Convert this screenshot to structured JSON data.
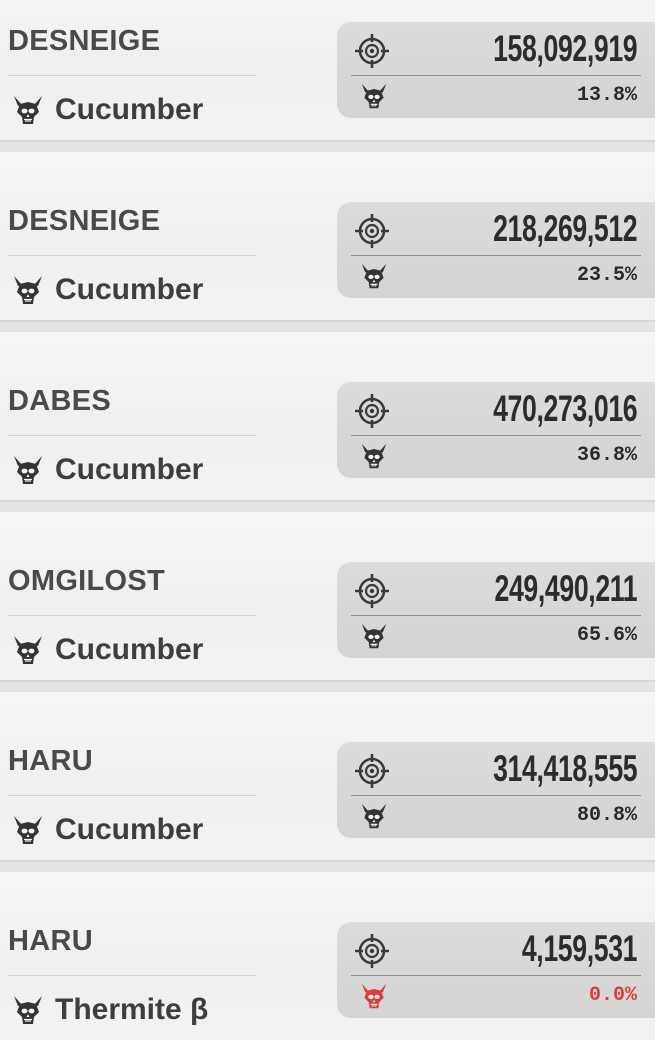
{
  "colors": {
    "skull_default": "#333333",
    "skull_alert": "#e53a3a",
    "pct_alert": "#e53a3a"
  },
  "rows": [
    {
      "player": "DESNEIGE",
      "entity": "Cucumber",
      "entity_icon": "skull-icon",
      "score": "158,092,919",
      "pct": "13.8%"
    },
    {
      "player": "DESNEIGE",
      "entity": "Cucumber",
      "entity_icon": "skull-icon",
      "score": "218,269,512",
      "pct": "23.5%"
    },
    {
      "player": "DABES",
      "entity": "Cucumber",
      "entity_icon": "skull-icon",
      "score": "470,273,016",
      "pct": "36.8%"
    },
    {
      "player": "OMGILOST",
      "entity": "Cucumber",
      "entity_icon": "skull-icon",
      "score": "249,490,211",
      "pct": "65.6%"
    },
    {
      "player": "HARU",
      "entity": "Cucumber",
      "entity_icon": "skull-icon",
      "score": "314,418,555",
      "pct": "80.8%"
    },
    {
      "player": "HARU",
      "entity": "Thermite β",
      "entity_icon": "skull-icon",
      "score": "4,159,531",
      "pct": "0.0%",
      "alert": true
    }
  ]
}
